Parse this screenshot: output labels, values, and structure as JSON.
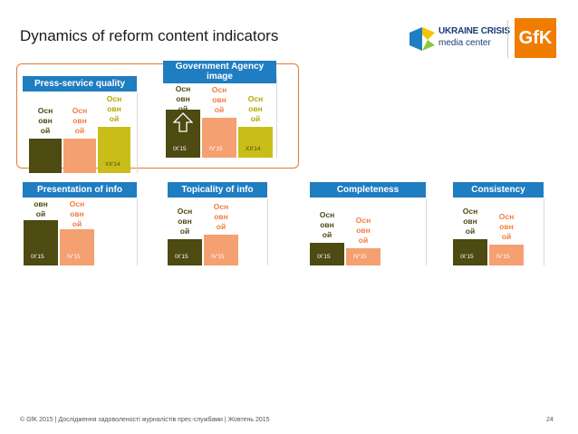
{
  "title": "Dynamics of reform content indicators",
  "logos": {
    "ucmc_line1": "UKRAINE CRISIS",
    "ucmc_line2": "media center",
    "gfk": "GfK"
  },
  "colors": {
    "dark": "#4d4a12",
    "salmon": "#f4a070",
    "yellow": "#c9be19",
    "header": "#1f7dc1",
    "highlight": "#e07b39"
  },
  "chart_data": [
    {
      "type": "bar",
      "title": "Press-service quality",
      "categories": [
        "",
        "",
        "XII'14"
      ],
      "values": [
        12,
        12,
        16
      ],
      "ylim": [
        0,
        40
      ],
      "labels": [
        "Осн\nовн\nой",
        "Осн\nовн\nой",
        "Осн\nовн\nой"
      ]
    },
    {
      "type": "bar",
      "title": "Government Agency image",
      "categories": [
        "IX'15",
        "IV'15",
        "XII'14"
      ],
      "values": [
        25,
        21,
        16
      ],
      "ylim": [
        0,
        40
      ],
      "labels": [
        "Осн\nовн\nой",
        "Осн\nовн\nой",
        "Осн\nовн\nой"
      ]
    },
    {
      "type": "bar",
      "title": "Presentation of info",
      "categories": [
        "IX'15",
        "IV'15"
      ],
      "values": [
        24,
        19
      ],
      "ylim": [
        0,
        37
      ],
      "labels": [
        "овн\nой",
        "Осн\nовн\nой"
      ]
    },
    {
      "type": "bar",
      "title": "Topicality of info",
      "categories": [
        "IX'15",
        "IV'15"
      ],
      "values": [
        14,
        16
      ],
      "ylim": [
        0,
        37
      ],
      "labels": [
        "Осн\nовн\nой",
        "Осн\nовн\nой"
      ]
    },
    {
      "type": "bar",
      "title": "Completeness",
      "categories": [
        "IX'15",
        "IV'15"
      ],
      "values": [
        12,
        9
      ],
      "ylim": [
        0,
        37
      ],
      "labels": [
        "Осн\nовн\nой",
        "Осн\nовн\nой"
      ]
    },
    {
      "type": "bar",
      "title": "Consistency",
      "categories": [
        "IX'15",
        "IV'15"
      ],
      "values": [
        14,
        11
      ],
      "ylim": [
        0,
        37
      ],
      "labels": [
        "Осн\nовн\nой",
        "Осн\nовн\nой"
      ]
    }
  ],
  "footer": "© GfK 2015 | Дослідження задоволеності журналістів прес-службами | Жовтень 2015",
  "page_number": "24"
}
